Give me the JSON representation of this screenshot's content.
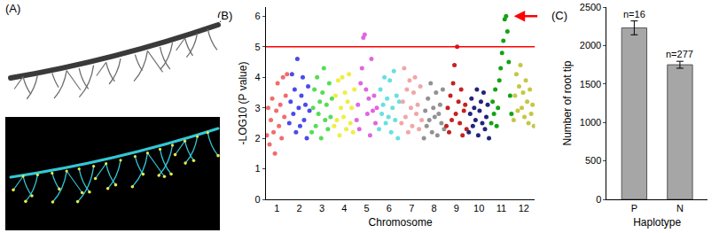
{
  "panel_a": {
    "label": "(A)"
  },
  "chart_data": [
    {
      "type": "scatter",
      "title": "(B)",
      "x_label": "Chromosome",
      "y_label": "-LOG10 (P value)",
      "xlim": [
        0.5,
        12.5
      ],
      "xticks": [
        1,
        2,
        3,
        4,
        5,
        6,
        7,
        8,
        9,
        10,
        11,
        12
      ],
      "ylim": [
        0,
        6.3
      ],
      "yticks": [
        0,
        1,
        2,
        3,
        4,
        5,
        6
      ],
      "grid": false,
      "marker": "circle",
      "threshold_line": {
        "value": 5,
        "color": "#ff0000"
      },
      "series": [
        {
          "color": "#f26b6b",
          "x": [
            0.55,
            0.61,
            0.67,
            0.73,
            0.79,
            0.85,
            0.91,
            0.97,
            1.03,
            1.09,
            1.15,
            1.21,
            1.27,
            1.33,
            1.39,
            1.45
          ],
          "values": [
            2.1,
            3.0,
            1.8,
            2.6,
            3.3,
            2.2,
            1.5,
            2.9,
            3.8,
            2.4,
            3.1,
            2.0,
            4.0,
            2.7,
            3.4,
            4.1
          ]
        },
        {
          "color": "#4b4bea",
          "x": [
            1.55,
            1.61,
            1.67,
            1.73,
            1.79,
            1.85,
            1.91,
            1.97,
            2.03,
            2.09,
            2.15,
            2.21,
            2.27,
            2.33,
            2.39,
            2.45
          ],
          "values": [
            2.5,
            3.2,
            4.1,
            2.8,
            3.6,
            2.2,
            4.6,
            3.0,
            2.4,
            3.4,
            4.0,
            2.6,
            3.1,
            2.0,
            3.7,
            2.9
          ]
        },
        {
          "color": "#55dd55",
          "x": [
            2.55,
            2.61,
            2.67,
            2.73,
            2.79,
            2.85,
            2.91,
            2.97,
            3.03,
            3.09,
            3.15,
            3.21,
            3.27,
            3.33,
            3.39,
            3.45
          ],
          "values": [
            2.2,
            3.0,
            3.6,
            2.4,
            4.0,
            2.8,
            3.2,
            2.0,
            3.5,
            4.3,
            2.6,
            3.1,
            2.3,
            3.8,
            2.7,
            3.3
          ]
        },
        {
          "color": "#eeee44",
          "x": [
            3.55,
            3.61,
            3.67,
            3.73,
            3.79,
            3.85,
            3.91,
            3.97,
            4.03,
            4.09,
            4.15,
            4.21,
            4.27,
            4.33,
            4.39,
            4.45
          ],
          "values": [
            2.4,
            3.4,
            2.6,
            3.9,
            2.1,
            3.0,
            4.0,
            2.7,
            3.5,
            2.3,
            3.2,
            4.1,
            2.5,
            3.0,
            2.2,
            3.6
          ]
        },
        {
          "color": "#e066e0",
          "x": [
            4.55,
            4.61,
            4.67,
            4.73,
            4.79,
            4.85,
            4.91,
            4.97,
            5.03,
            5.09,
            5.15,
            5.21,
            5.27,
            5.33,
            5.39,
            5.45
          ],
          "values": [
            2.6,
            3.1,
            2.3,
            3.8,
            4.3,
            5.3,
            5.4,
            3.6,
            2.8,
            3.3,
            2.1,
            4.6,
            2.9,
            3.4,
            2.5,
            3.0
          ]
        },
        {
          "color": "#66e0e0",
          "x": [
            5.55,
            5.61,
            5.67,
            5.73,
            5.79,
            5.85,
            5.91,
            5.97,
            6.03,
            6.09,
            6.15,
            6.21,
            6.27,
            6.33,
            6.39,
            6.45
          ],
          "values": [
            2.3,
            3.6,
            2.8,
            3.1,
            4.0,
            2.5,
            3.3,
            2.7,
            3.9,
            2.2,
            3.0,
            4.2,
            2.6,
            3.4,
            2.0,
            3.2
          ]
        },
        {
          "color": "#f2a6a6",
          "x": [
            6.55,
            6.61,
            6.67,
            6.73,
            6.79,
            6.85,
            6.91,
            6.97,
            7.03,
            7.09,
            7.15,
            7.21,
            7.27,
            7.33,
            7.39,
            7.45
          ],
          "values": [
            2.5,
            3.2,
            4.3,
            2.7,
            3.6,
            2.2,
            3.9,
            3.0,
            2.4,
            3.5,
            4.0,
            2.8,
            3.1,
            2.3,
            3.7,
            2.6
          ]
        },
        {
          "color": "#929292",
          "x": [
            7.55,
            7.61,
            7.67,
            7.73,
            7.79,
            7.85,
            7.91,
            7.97,
            8.03,
            8.09,
            8.15,
            8.21,
            8.27,
            8.33,
            8.39,
            8.45
          ],
          "values": [
            2.0,
            2.9,
            2.4,
            3.3,
            2.6,
            3.8,
            2.2,
            3.0,
            2.7,
            3.5,
            2.1,
            2.8,
            3.1,
            2.5,
            3.6,
            2.3
          ]
        },
        {
          "color": "#c42222",
          "x": [
            8.55,
            8.61,
            8.67,
            8.73,
            8.79,
            8.85,
            8.91,
            8.97,
            9.03,
            9.09,
            9.15,
            9.21,
            9.27,
            9.33,
            9.39,
            9.45
          ],
          "values": [
            2.4,
            3.0,
            2.2,
            3.4,
            2.6,
            3.8,
            4.4,
            2.8,
            5.0,
            3.2,
            2.5,
            3.6,
            2.1,
            2.9,
            3.1,
            2.3
          ]
        },
        {
          "color": "#23237f",
          "x": [
            9.55,
            9.61,
            9.67,
            9.73,
            9.79,
            9.85,
            9.91,
            9.97,
            10.03,
            10.09,
            10.15,
            10.21,
            10.27,
            10.33,
            10.39,
            10.45
          ],
          "values": [
            2.2,
            2.8,
            3.3,
            2.4,
            3.0,
            2.6,
            3.6,
            2.1,
            2.9,
            3.2,
            2.5,
            3.5,
            2.3,
            2.7,
            3.1,
            2.0
          ]
        },
        {
          "color": "#13a313",
          "x": [
            10.55,
            10.61,
            10.67,
            10.73,
            10.79,
            10.85,
            10.91,
            10.97,
            11.03,
            11.09,
            11.15,
            11.21,
            11.27,
            11.33,
            11.39,
            11.45
          ],
          "values": [
            2.5,
            3.2,
            2.8,
            3.6,
            2.4,
            3.0,
            3.9,
            4.3,
            4.8,
            5.2,
            5.9,
            6.0,
            5.5,
            4.5,
            3.4,
            2.8
          ]
        },
        {
          "color": "#c6c643",
          "x": [
            11.55,
            11.61,
            11.67,
            11.73,
            11.79,
            11.85,
            11.91,
            11.97,
            12.03,
            12.09,
            12.15,
            12.21,
            12.27,
            12.33,
            12.39,
            12.45
          ],
          "values": [
            2.6,
            3.4,
            4.1,
            2.9,
            3.7,
            4.4,
            3.0,
            3.5,
            2.7,
            3.9,
            3.2,
            2.5,
            3.6,
            2.8,
            3.1,
            2.4
          ]
        }
      ]
    },
    {
      "type": "bar",
      "title": "(C)",
      "x_label": "Haplotype",
      "y_label": "Number of root tip",
      "categories": [
        "P",
        "N"
      ],
      "values": [
        2230,
        1750
      ],
      "errors": [
        90,
        45
      ],
      "n_labels": [
        "n=16",
        "n=277"
      ],
      "color": "#a6a6a6",
      "ylim": [
        0,
        2500
      ],
      "yticks": [
        0,
        500,
        1000,
        1500,
        2000,
        2500
      ],
      "grid": false
    }
  ]
}
